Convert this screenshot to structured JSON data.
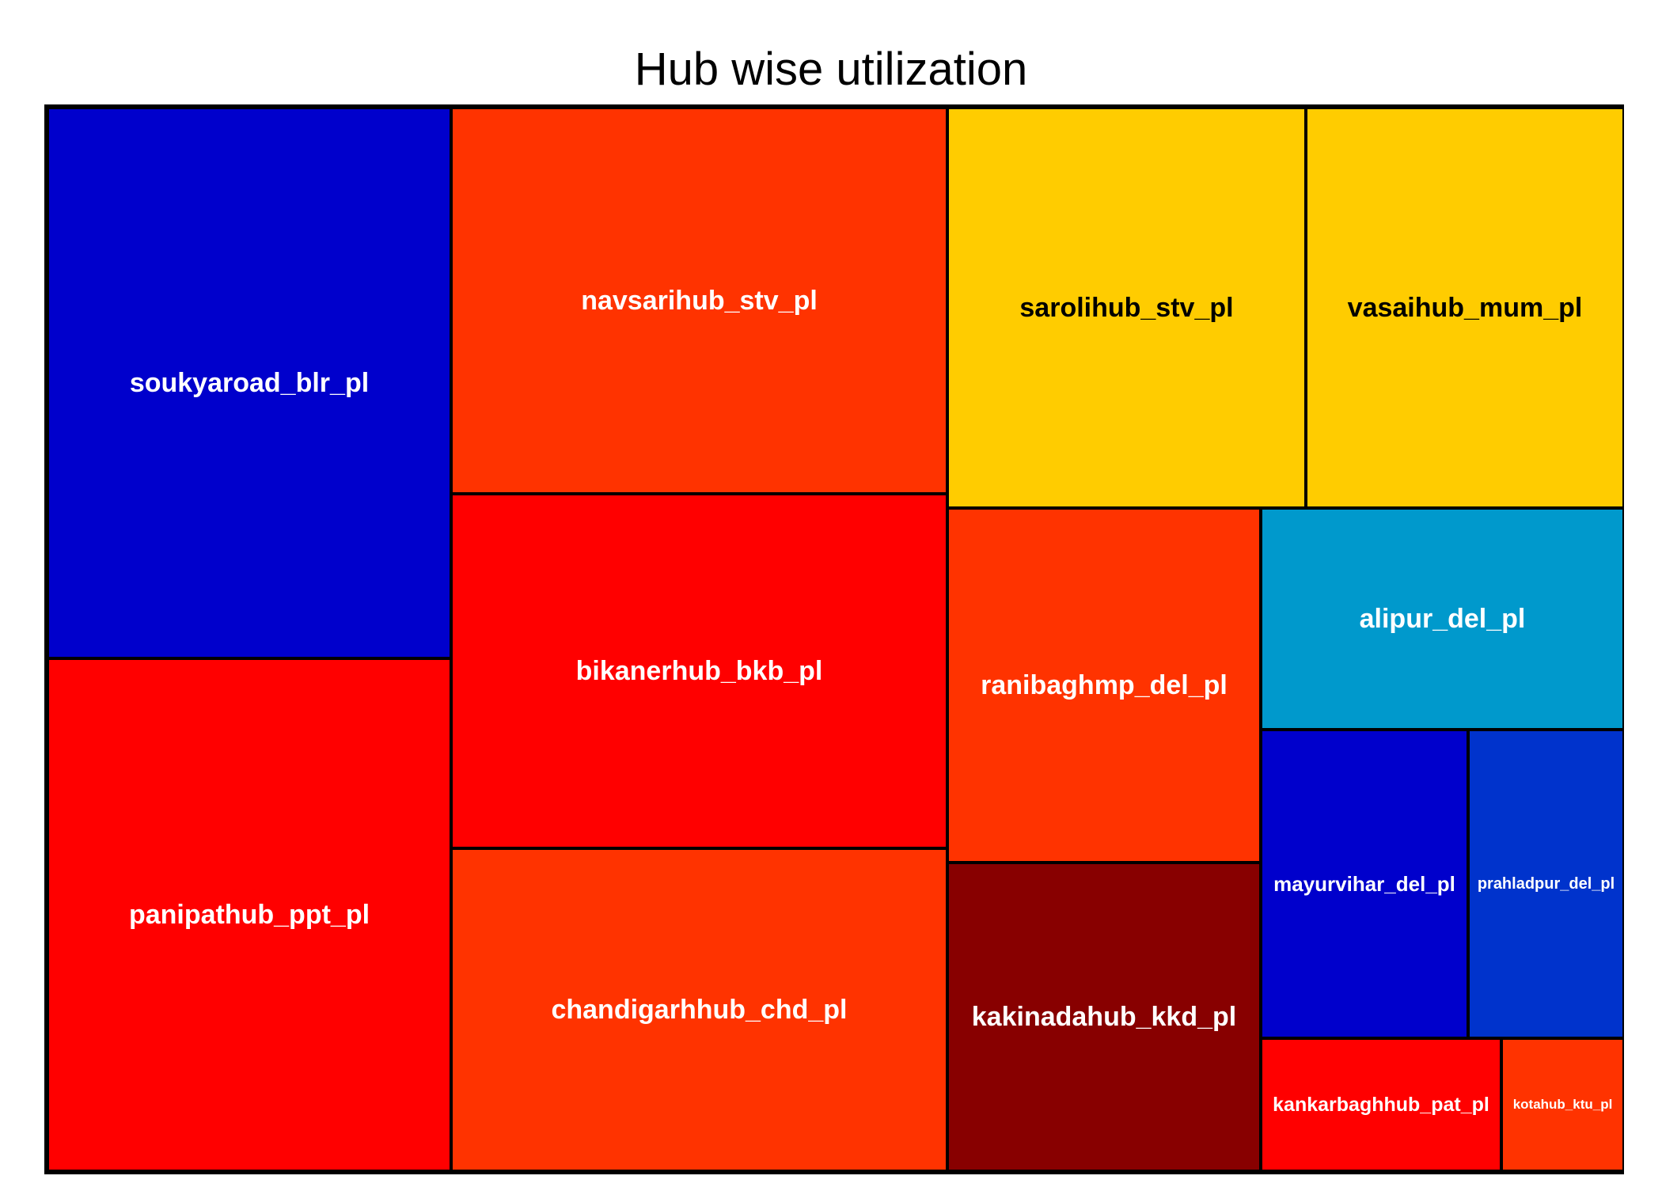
{
  "chart_data": {
    "type": "treemap",
    "title": "Hub wise utilization",
    "items": [
      {
        "name": "soukyaroad_blr_pl",
        "color": "#0000CC",
        "label_color": "#FFFFFF"
      },
      {
        "name": "panipathub_ppt_pl",
        "color": "#FF0000",
        "label_color": "#FFFFFF"
      },
      {
        "name": "navsarihub_stv_pl",
        "color": "#FF3300",
        "label_color": "#FFFFFF"
      },
      {
        "name": "bikanerhub_bkb_pl",
        "color": "#FF0000",
        "label_color": "#FFFFFF"
      },
      {
        "name": "chandigarhhub_chd_pl",
        "color": "#FF3300",
        "label_color": "#FFFFFF"
      },
      {
        "name": "sarolihub_stv_pl",
        "color": "#FFCC00",
        "label_color": "#000000"
      },
      {
        "name": "vasaihub_mum_pl",
        "color": "#FFCC00",
        "label_color": "#000000"
      },
      {
        "name": "ranibaghmp_del_pl",
        "color": "#FF3300",
        "label_color": "#FFFFFF"
      },
      {
        "name": "kakinadahub_kkd_pl",
        "color": "#880000",
        "label_color": "#FFFFFF"
      },
      {
        "name": "alipur_del_pl",
        "color": "#0099CC",
        "label_color": "#FFFFFF"
      },
      {
        "name": "mayurvihar_del_pl",
        "color": "#0000CC",
        "label_color": "#FFFFFF"
      },
      {
        "name": "prahladpur_del_pl",
        "color": "#0033CC",
        "label_color": "#FFFFFF"
      },
      {
        "name": "kankarbaghhub_pat_pl",
        "color": "#FF0000",
        "label_color": "#FFFFFF"
      },
      {
        "name": "kotahub_ktu_pl",
        "color": "#FF3300",
        "label_color": "#FFFFFF"
      }
    ]
  }
}
